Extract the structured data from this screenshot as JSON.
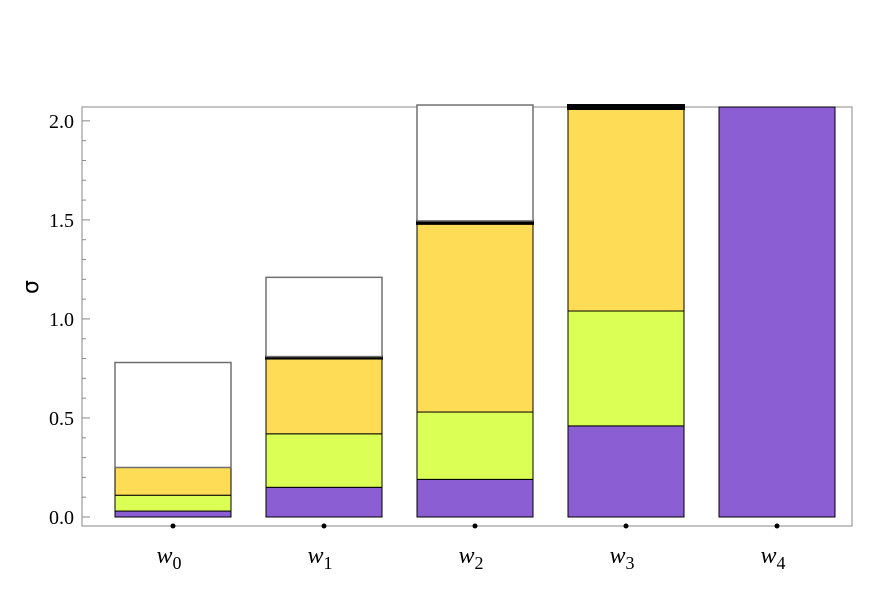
{
  "chart_data": {
    "type": "bar",
    "stacked": true,
    "title": "",
    "xlabel": "",
    "ylabel": "σ",
    "ylim": [
      0,
      2.07
    ],
    "yticks": [
      "0.0",
      "0.5",
      "1.0",
      "1.5",
      "2.0"
    ],
    "ytick_values": [
      0,
      0.5,
      1.0,
      1.5,
      2.0
    ],
    "categories": [
      {
        "base": "w",
        "sub": "0"
      },
      {
        "base": "w",
        "sub": "1"
      },
      {
        "base": "w",
        "sub": "2"
      },
      {
        "base": "w",
        "sub": "3"
      },
      {
        "base": "w",
        "sub": "4"
      }
    ],
    "series": [
      {
        "color": "#8b5fd3",
        "values": [
          0.03,
          0.15,
          0.19,
          0.46,
          2.07
        ]
      },
      {
        "color": "#dcff55",
        "values": [
          0.08,
          0.27,
          0.34,
          0.58,
          0
        ]
      },
      {
        "color": "#ffdc55",
        "values": [
          0.14,
          0.38,
          0.95,
          1.02,
          0
        ]
      },
      {
        "color": "#000000",
        "values": [
          0,
          0.01,
          0.015,
          0.02,
          0
        ]
      },
      {
        "color": "#ffffff",
        "values": [
          0.53,
          0.4,
          0.585,
          0,
          0
        ]
      }
    ],
    "legend": "none",
    "grid": false
  }
}
